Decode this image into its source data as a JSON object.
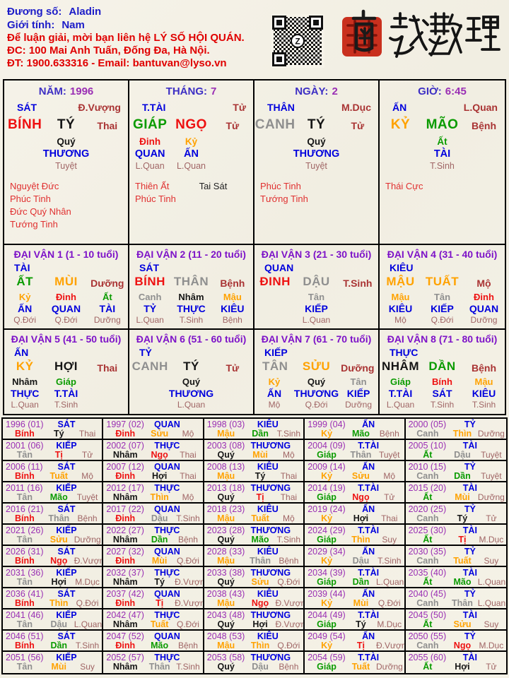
{
  "header": {
    "name_label": "Đương số:",
    "name_value": "Aladin",
    "gender_label": "Giới tính:",
    "gender_value": "Nam",
    "contact_line1": "Để luận giải, mời bạn liên hệ LÝ SỐ HỘI QUÁN.",
    "contact_line2": "ĐC: 100 Mai Anh Tuấn, Đống Đa, Hà Nội.",
    "contact_line3": "ĐT: 1900.633316 - Email: bantuvan@lyso.vn",
    "logo_text": "南越數理",
    "qr_center_label": "Z"
  },
  "colors": {
    "wood": "#0a9b00",
    "fire": "#ee1111",
    "earth": "#ffa200",
    "metal": "#8f8f8f",
    "water": "#151515",
    "god_blue": "#0000dd",
    "year_purple": "#9a2fb4",
    "title_purple": "#7d12c8",
    "stage_strong": "#a93333",
    "stage_soft": "#a06565",
    "star_red": "#e03030",
    "header_blue": "#1c1cc8",
    "header_red": "#e00000"
  },
  "pillars": [
    {
      "label": "NĂM:",
      "value": "1996",
      "god": "SÁT",
      "right": "Đ.Vượng",
      "stem": "BÍNH",
      "stem_el": "fire",
      "branch": "TÝ",
      "branch_el": "water",
      "stage": "Thai",
      "hidden": [
        {
          "slot": 1,
          "stem": "Quý",
          "el": "water",
          "god": "THƯƠNG",
          "stage": "Tuyệt"
        }
      ],
      "stars_left": [
        "Nguyệt Đức",
        "Phúc Tinh",
        "Đức Quý Nhân",
        "Tướng Tinh"
      ],
      "stars_right": []
    },
    {
      "label": "THÁNG:",
      "value": "7",
      "god": "T.TÀI",
      "right": "Tử",
      "stem": "GIÁP",
      "stem_el": "wood",
      "branch": "NGỌ",
      "branch_el": "fire",
      "stage": "Tử",
      "hidden": [
        {
          "slot": 0,
          "stem": "Đinh",
          "el": "fire",
          "god": "QUAN",
          "stage": "L.Quan"
        },
        {
          "slot": 1,
          "stem": "Kỷ",
          "el": "earth",
          "god": "ẤN",
          "stage": "L.Quan"
        }
      ],
      "stars_left": [
        "Thiên Ất",
        "Phúc Tinh"
      ],
      "stars_right": [
        "Tai Sát"
      ]
    },
    {
      "label": "NGÀY:",
      "value": "2",
      "god": "THÂN",
      "right": "M.Dục",
      "stem": "CANH",
      "stem_el": "metal",
      "branch": "TÝ",
      "branch_el": "water",
      "stage": "Tử",
      "hidden": [
        {
          "slot": 1,
          "stem": "Quý",
          "el": "water",
          "god": "THƯƠNG",
          "stage": "Tuyệt"
        }
      ],
      "stars_left": [
        "Phúc Tinh",
        "Tướng Tinh"
      ],
      "stars_right": []
    },
    {
      "label": "GIỜ:",
      "value": "6:45",
      "god": "ẤN",
      "right": "L.Quan",
      "stem": "KỶ",
      "stem_el": "earth",
      "branch": "MÃO",
      "branch_el": "wood",
      "stage": "Bệnh",
      "hidden": [
        {
          "slot": 1,
          "stem": "Ất",
          "el": "wood",
          "god": "TÀI",
          "stage": "T.Sinh"
        }
      ],
      "stars_left": [
        "Thái Cực"
      ],
      "stars_right": []
    }
  ],
  "dai_van": [
    {
      "title": "ĐẠI VẬN 1 (1 - 10 tuổi)",
      "god": "TÀI",
      "stem": "ẤT",
      "stem_el": "wood",
      "branch": "MÙI",
      "branch_el": "earth",
      "stage": "Dưỡng",
      "hidden": [
        {
          "slot": 0,
          "stem": "Kỷ",
          "el": "earth",
          "god": "ẤN",
          "stage": "Q.Đới"
        },
        {
          "slot": 1,
          "stem": "Đinh",
          "el": "fire",
          "god": "QUAN",
          "stage": "Q.Đới"
        },
        {
          "slot": 2,
          "stem": "Ất",
          "el": "wood",
          "god": "TÀI",
          "stage": "Dưỡng"
        }
      ]
    },
    {
      "title": "ĐẠI VẬN 2 (11 - 20 tuổi)",
      "god": "SÁT",
      "stem": "BÍNH",
      "stem_el": "fire",
      "branch": "THÂN",
      "branch_el": "metal",
      "stage": "Bệnh",
      "hidden": [
        {
          "slot": 0,
          "stem": "Canh",
          "el": "metal",
          "god": "TỶ",
          "stage": "L.Quan"
        },
        {
          "slot": 1,
          "stem": "Nhâm",
          "el": "water",
          "god": "THỰC",
          "stage": "T.Sinh"
        },
        {
          "slot": 2,
          "stem": "Mậu",
          "el": "earth",
          "god": "KIÊU",
          "stage": "Bệnh"
        }
      ]
    },
    {
      "title": "ĐẠI VẬN 3 (21 - 30 tuổi)",
      "god": "QUAN",
      "stem": "ĐINH",
      "stem_el": "fire",
      "branch": "DẬU",
      "branch_el": "metal",
      "stage": "T.Sinh",
      "hidden": [
        {
          "slot": 1,
          "stem": "Tân",
          "el": "metal",
          "god": "KIẾP",
          "stage": "L.Quan"
        }
      ]
    },
    {
      "title": "ĐẠI VẬN 4 (31 - 40 tuổi)",
      "god": "KIÊU",
      "stem": "MẬU",
      "stem_el": "earth",
      "branch": "TUẤT",
      "branch_el": "earth",
      "stage": "Mộ",
      "hidden": [
        {
          "slot": 0,
          "stem": "Mậu",
          "el": "earth",
          "god": "KIÊU",
          "stage": "Mộ"
        },
        {
          "slot": 1,
          "stem": "Tân",
          "el": "metal",
          "god": "KIẾP",
          "stage": "Q.Đới"
        },
        {
          "slot": 2,
          "stem": "Đinh",
          "el": "fire",
          "god": "QUAN",
          "stage": "Dưỡng"
        }
      ]
    },
    {
      "title": "ĐẠI VẬN 5 (41 - 50 tuổi)",
      "god": "ẤN",
      "stem": "KỶ",
      "stem_el": "earth",
      "branch": "HỢI",
      "branch_el": "water",
      "stage": "Thai",
      "hidden": [
        {
          "slot": 0,
          "stem": "Nhâm",
          "el": "water",
          "god": "THỰC",
          "stage": "L.Quan"
        },
        {
          "slot": 1,
          "stem": "Giáp",
          "el": "wood",
          "god": "T.TÀI",
          "stage": "T.Sinh"
        }
      ]
    },
    {
      "title": "ĐẠI VẬN 6 (51 - 60 tuổi)",
      "god": "TỶ",
      "stem": "CANH",
      "stem_el": "metal",
      "branch": "TÝ",
      "branch_el": "water",
      "stage": "Tử",
      "hidden": [
        {
          "slot": 1,
          "stem": "Quý",
          "el": "water",
          "god": "THƯƠNG",
          "stage": "L.Quan"
        }
      ]
    },
    {
      "title": "ĐẠI VẬN 7 (61 - 70 tuổi)",
      "god": "KIẾP",
      "stem": "TÂN",
      "stem_el": "metal",
      "branch": "SỬU",
      "branch_el": "earth",
      "stage": "Dưỡng",
      "hidden": [
        {
          "slot": 0,
          "stem": "Kỷ",
          "el": "earth",
          "god": "ẤN",
          "stage": "Mộ"
        },
        {
          "slot": 1,
          "stem": "Quý",
          "el": "water",
          "god": "THƯƠNG",
          "stage": "Q.Đới"
        },
        {
          "slot": 2,
          "stem": "Tân",
          "el": "metal",
          "god": "KIẾP",
          "stage": "Dưỡng"
        }
      ]
    },
    {
      "title": "ĐẠI VẬN 8 (71 - 80 tuổi)",
      "god": "THỰC",
      "stem": "NHÂM",
      "stem_el": "water",
      "branch": "DẦN",
      "branch_el": "wood",
      "stage": "Bệnh",
      "hidden": [
        {
          "slot": 0,
          "stem": "Giáp",
          "el": "wood",
          "god": "T.TÀI",
          "stage": "L.Quan"
        },
        {
          "slot": 1,
          "stem": "Bính",
          "el": "fire",
          "god": "SÁT",
          "stage": "T.Sinh"
        },
        {
          "slot": 2,
          "stem": "Mậu",
          "el": "earth",
          "god": "KIÊU",
          "stage": "T.Sinh"
        }
      ]
    }
  ],
  "years": [
    {
      "t": "1996 (01)",
      "g": "SÁT",
      "s": "Bính",
      "se": "fire",
      "b": "Tý",
      "be": "water",
      "st": "Thai"
    },
    {
      "t": "1997 (02)",
      "g": "QUAN",
      "s": "Đinh",
      "se": "fire",
      "b": "Sửu",
      "be": "earth",
      "st": "Mộ"
    },
    {
      "t": "1998 (03)",
      "g": "KIÊU",
      "s": "Mậu",
      "se": "earth",
      "b": "Dần",
      "be": "wood",
      "st": "T.Sinh"
    },
    {
      "t": "1999 (04)",
      "g": "ẤN",
      "s": "Kỷ",
      "se": "earth",
      "b": "Mão",
      "be": "wood",
      "st": "Bệnh"
    },
    {
      "t": "2000 (05)",
      "g": "TỶ",
      "s": "Canh",
      "se": "metal",
      "b": "Thìn",
      "be": "earth",
      "st": "Dưỡng"
    },
    {
      "t": "2001 (06)",
      "g": "KIẾP",
      "s": "Tân",
      "se": "metal",
      "b": "Tị",
      "be": "fire",
      "st": "Tử"
    },
    {
      "t": "2002 (07)",
      "g": "THỰC",
      "s": "Nhâm",
      "se": "water",
      "b": "Ngọ",
      "be": "fire",
      "st": "Thai"
    },
    {
      "t": "2003 (08)",
      "g": "THƯƠNG",
      "s": "Quý",
      "se": "water",
      "b": "Mùi",
      "be": "earth",
      "st": "Mộ"
    },
    {
      "t": "2004 (09)",
      "g": "T.TÀI",
      "s": "Giáp",
      "se": "wood",
      "b": "Thân",
      "be": "metal",
      "st": "Tuyệt"
    },
    {
      "t": "2005 (10)",
      "g": "TÀI",
      "s": "Ất",
      "se": "wood",
      "b": "Dậu",
      "be": "metal",
      "st": "Tuyệt"
    },
    {
      "t": "2006 (11)",
      "g": "SÁT",
      "s": "Bính",
      "se": "fire",
      "b": "Tuất",
      "be": "earth",
      "st": "Mộ"
    },
    {
      "t": "2007 (12)",
      "g": "QUAN",
      "s": "Đinh",
      "se": "fire",
      "b": "Hợi",
      "be": "water",
      "st": "Thai"
    },
    {
      "t": "2008 (13)",
      "g": "KIÊU",
      "s": "Mậu",
      "se": "earth",
      "b": "Tý",
      "be": "water",
      "st": "Thai"
    },
    {
      "t": "2009 (14)",
      "g": "ẤN",
      "s": "Kỷ",
      "se": "earth",
      "b": "Sửu",
      "be": "earth",
      "st": "Mộ"
    },
    {
      "t": "2010 (15)",
      "g": "TỶ",
      "s": "Canh",
      "se": "metal",
      "b": "Dần",
      "be": "wood",
      "st": "Tuyệt"
    },
    {
      "t": "2011 (16)",
      "g": "KIẾP",
      "s": "Tân",
      "se": "metal",
      "b": "Mão",
      "be": "wood",
      "st": "Tuyệt"
    },
    {
      "t": "2012 (17)",
      "g": "THỰC",
      "s": "Nhâm",
      "se": "water",
      "b": "Thìn",
      "be": "earth",
      "st": "Mộ"
    },
    {
      "t": "2013 (18)",
      "g": "THƯƠNG",
      "s": "Quý",
      "se": "water",
      "b": "Tị",
      "be": "fire",
      "st": "Thai"
    },
    {
      "t": "2014 (19)",
      "g": "T.TÀI",
      "s": "Giáp",
      "se": "wood",
      "b": "Ngọ",
      "be": "fire",
      "st": "Tử"
    },
    {
      "t": "2015 (20)",
      "g": "TÀI",
      "s": "Ất",
      "se": "wood",
      "b": "Mùi",
      "be": "earth",
      "st": "Dưỡng"
    },
    {
      "t": "2016 (21)",
      "g": "SÁT",
      "s": "Bính",
      "se": "fire",
      "b": "Thân",
      "be": "metal",
      "st": "Bệnh"
    },
    {
      "t": "2017 (22)",
      "g": "QUAN",
      "s": "Đinh",
      "se": "fire",
      "b": "Dậu",
      "be": "metal",
      "st": "T.Sinh"
    },
    {
      "t": "2018 (23)",
      "g": "KIÊU",
      "s": "Mậu",
      "se": "earth",
      "b": "Tuất",
      "be": "earth",
      "st": "Mộ"
    },
    {
      "t": "2019 (24)",
      "g": "ẤN",
      "s": "Kỷ",
      "se": "earth",
      "b": "Hợi",
      "be": "water",
      "st": "Thai"
    },
    {
      "t": "2020 (25)",
      "g": "TỶ",
      "s": "Canh",
      "se": "metal",
      "b": "Tý",
      "be": "water",
      "st": "Tử"
    },
    {
      "t": "2021 (26)",
      "g": "KIẾP",
      "s": "Tân",
      "se": "metal",
      "b": "Sửu",
      "be": "earth",
      "st": "Dưỡng"
    },
    {
      "t": "2022 (27)",
      "g": "THỰC",
      "s": "Nhâm",
      "se": "water",
      "b": "Dần",
      "be": "wood",
      "st": "Bệnh"
    },
    {
      "t": "2023 (28)",
      "g": "THƯƠNG",
      "s": "Quý",
      "se": "water",
      "b": "Mão",
      "be": "wood",
      "st": "T.Sinh"
    },
    {
      "t": "2024 (29)",
      "g": "T.TÀI",
      "s": "Giáp",
      "se": "wood",
      "b": "Thìn",
      "be": "earth",
      "st": "Suy"
    },
    {
      "t": "2025 (30)",
      "g": "TÀI",
      "s": "Ất",
      "se": "wood",
      "b": "Tị",
      "be": "fire",
      "st": "M.Dục"
    },
    {
      "t": "2026 (31)",
      "g": "SÁT",
      "s": "Bính",
      "se": "fire",
      "b": "Ngọ",
      "be": "fire",
      "st": "Đ.Vượng"
    },
    {
      "t": "2027 (32)",
      "g": "QUAN",
      "s": "Đinh",
      "se": "fire",
      "b": "Mùi",
      "be": "earth",
      "st": "Q.Đới"
    },
    {
      "t": "2028 (33)",
      "g": "KIÊU",
      "s": "Mậu",
      "se": "earth",
      "b": "Thân",
      "be": "metal",
      "st": "Bệnh"
    },
    {
      "t": "2029 (34)",
      "g": "ẤN",
      "s": "Kỷ",
      "se": "earth",
      "b": "Dậu",
      "be": "metal",
      "st": "T.Sinh"
    },
    {
      "t": "2030 (35)",
      "g": "TỶ",
      "s": "Canh",
      "se": "metal",
      "b": "Tuất",
      "be": "earth",
      "st": "Suy"
    },
    {
      "t": "2031 (36)",
      "g": "KIẾP",
      "s": "Tân",
      "se": "metal",
      "b": "Hợi",
      "be": "water",
      "st": "M.Dục"
    },
    {
      "t": "2032 (37)",
      "g": "THỰC",
      "s": "Nhâm",
      "se": "water",
      "b": "Tý",
      "be": "water",
      "st": "Đ.Vượng"
    },
    {
      "t": "2033 (38)",
      "g": "THƯƠNG",
      "s": "Quý",
      "se": "water",
      "b": "Sửu",
      "be": "earth",
      "st": "Q.Đới"
    },
    {
      "t": "2034 (39)",
      "g": "T.TÀI",
      "s": "Giáp",
      "se": "wood",
      "b": "Dần",
      "be": "wood",
      "st": "L.Quan"
    },
    {
      "t": "2035 (40)",
      "g": "TÀI",
      "s": "Ất",
      "se": "wood",
      "b": "Mão",
      "be": "wood",
      "st": "L.Quan"
    },
    {
      "t": "2036 (41)",
      "g": "SÁT",
      "s": "Bính",
      "se": "fire",
      "b": "Thìn",
      "be": "earth",
      "st": "Q.Đới"
    },
    {
      "t": "2037 (42)",
      "g": "QUAN",
      "s": "Đinh",
      "se": "fire",
      "b": "Tị",
      "be": "fire",
      "st": "Đ.Vượng"
    },
    {
      "t": "2038 (43)",
      "g": "KIÊU",
      "s": "Mậu",
      "se": "earth",
      "b": "Ngọ",
      "be": "fire",
      "st": "Đ.Vượng"
    },
    {
      "t": "2039 (44)",
      "g": "ẤN",
      "s": "Kỷ",
      "se": "earth",
      "b": "Mùi",
      "be": "earth",
      "st": "Q.Đới"
    },
    {
      "t": "2040 (45)",
      "g": "TỶ",
      "s": "Canh",
      "se": "metal",
      "b": "Thân",
      "be": "metal",
      "st": "L.Quan"
    },
    {
      "t": "2041 (46)",
      "g": "KIẾP",
      "s": "Tân",
      "se": "metal",
      "b": "Dậu",
      "be": "metal",
      "st": "L.Quan"
    },
    {
      "t": "2042 (47)",
      "g": "THỰC",
      "s": "Nhâm",
      "se": "water",
      "b": "Tuất",
      "be": "earth",
      "st": "Q.Đới"
    },
    {
      "t": "2043 (48)",
      "g": "THƯƠNG",
      "s": "Quý",
      "se": "water",
      "b": "Hợi",
      "be": "water",
      "st": "Đ.Vượng"
    },
    {
      "t": "2044 (49)",
      "g": "T.TÀI",
      "s": "Giáp",
      "se": "wood",
      "b": "Tý",
      "be": "water",
      "st": "M.Dục"
    },
    {
      "t": "2045 (50)",
      "g": "TÀI",
      "s": "Ất",
      "se": "wood",
      "b": "Sửu",
      "be": "earth",
      "st": "Suy"
    },
    {
      "t": "2046 (51)",
      "g": "SÁT",
      "s": "Bính",
      "se": "fire",
      "b": "Dần",
      "be": "wood",
      "st": "T.Sinh"
    },
    {
      "t": "2047 (52)",
      "g": "QUAN",
      "s": "Đinh",
      "se": "fire",
      "b": "Mão",
      "be": "wood",
      "st": "Bệnh"
    },
    {
      "t": "2048 (53)",
      "g": "KIÊU",
      "s": "Mậu",
      "se": "earth",
      "b": "Thìn",
      "be": "earth",
      "st": "Q.Đới"
    },
    {
      "t": "2049 (54)",
      "g": "ẤN",
      "s": "Kỷ",
      "se": "earth",
      "b": "Tị",
      "be": "fire",
      "st": "Đ.Vượng"
    },
    {
      "t": "2050 (55)",
      "g": "TỶ",
      "s": "Canh",
      "se": "metal",
      "b": "Ngọ",
      "be": "fire",
      "st": "M.Dục"
    },
    {
      "t": "2051 (56)",
      "g": "KIẾP",
      "s": "Tân",
      "se": "metal",
      "b": "Mùi",
      "be": "earth",
      "st": "Suy"
    },
    {
      "t": "2052 (57)",
      "g": "THỰC",
      "s": "Nhâm",
      "se": "water",
      "b": "Thân",
      "be": "metal",
      "st": "T.Sinh"
    },
    {
      "t": "2053 (58)",
      "g": "THƯƠNG",
      "s": "Quý",
      "se": "water",
      "b": "Dậu",
      "be": "metal",
      "st": "Bệnh"
    },
    {
      "t": "2054 (59)",
      "g": "T.TÀI",
      "s": "Giáp",
      "se": "wood",
      "b": "Tuất",
      "be": "earth",
      "st": "Dưỡng"
    },
    {
      "t": "2055 (60)",
      "g": "TÀI",
      "s": "Ất",
      "se": "wood",
      "b": "Hợi",
      "be": "water",
      "st": "Tử"
    }
  ]
}
